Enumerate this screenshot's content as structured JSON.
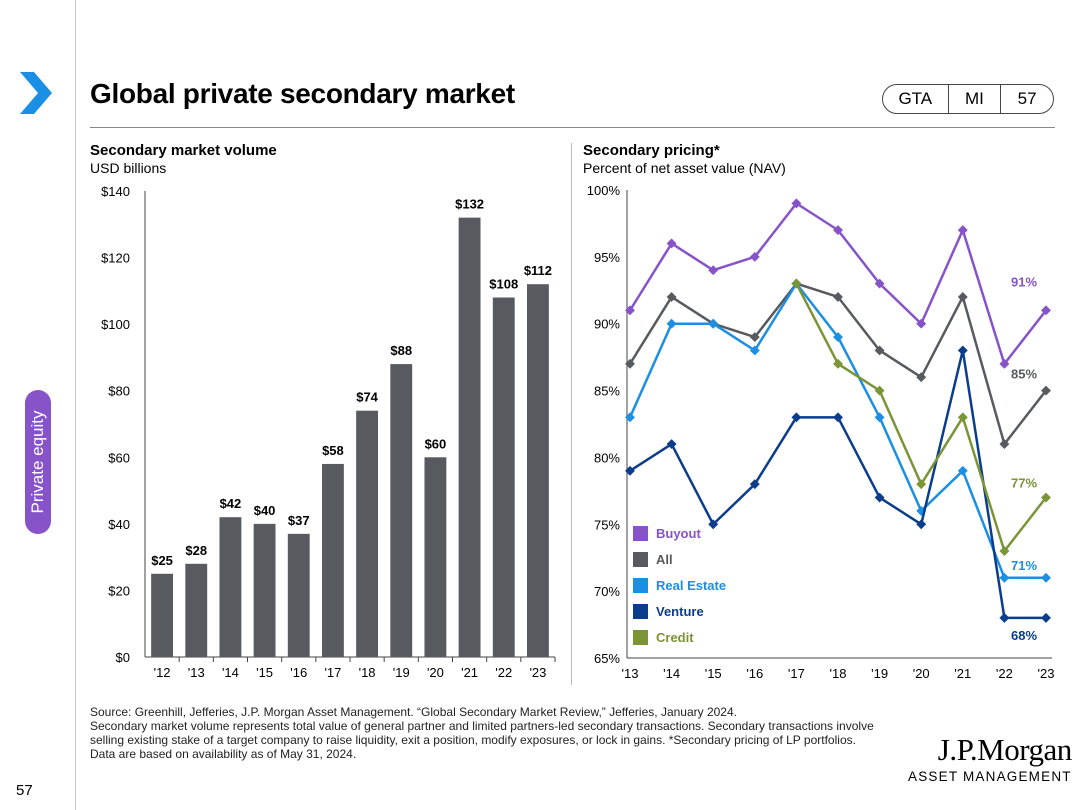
{
  "page": {
    "title": "Global private secondary market",
    "tags": [
      "GTA",
      "MI",
      "57"
    ],
    "section_tab": "Private equity",
    "page_number": "57",
    "footnotes": [
      "Source: Greenhill, Jefferies, J.P. Morgan Asset Management. “Global Secondary Market Review,” Jefferies, January 2024.",
      "Secondary market volume represents total value of general partner and limited partners-led secondary transactions. Secondary transactions involve selling existing stake of a target company to raise liquidity, exit a position, modify exposures, or lock in gains. *Secondary pricing of LP portfolios.",
      "Data are based on availability as of May 31, 2024."
    ],
    "logo": {
      "line1": "J.P.Morgan",
      "line2": "ASSET MANAGEMENT"
    },
    "colors": {
      "accent": "#8653c9",
      "brand_blue": "#1a8fe3",
      "bar": "#575a5e"
    }
  },
  "chart_data": [
    {
      "type": "bar",
      "title": "Secondary market volume",
      "subtitle": "USD billions",
      "categories": [
        "'12",
        "'13",
        "'14",
        "'15",
        "'16",
        "'17",
        "'18",
        "'19",
        "'20",
        "'21",
        "'22",
        "'23"
      ],
      "values": [
        25,
        28,
        42,
        40,
        37,
        58,
        74,
        88,
        60,
        132,
        108,
        112
      ],
      "data_labels": [
        "$25",
        "$28",
        "$42",
        "$40",
        "$37",
        "$58",
        "$74",
        "$88",
        "$60",
        "$132",
        "$108",
        "$112"
      ],
      "ylim": [
        0,
        140
      ],
      "yticks": [
        0,
        20,
        40,
        60,
        80,
        100,
        120,
        140
      ],
      "ytick_labels": [
        "$0",
        "$20",
        "$40",
        "$60",
        "$80",
        "$100",
        "$120",
        "$140"
      ],
      "color": "#575a5e"
    },
    {
      "type": "line",
      "title": "Secondary pricing*",
      "subtitle": "Percent of net asset value (NAV)",
      "categories": [
        "'13",
        "'14",
        "'15",
        "'16",
        "'17",
        "'18",
        "'19",
        "'20",
        "'21",
        "'22",
        "'23"
      ],
      "ylim": [
        65,
        100
      ],
      "yticks": [
        65,
        70,
        75,
        80,
        85,
        90,
        95,
        100
      ],
      "ytick_labels": [
        "65%",
        "70%",
        "75%",
        "80%",
        "85%",
        "90%",
        "95%",
        "100%"
      ],
      "series": [
        {
          "name": "Buyout",
          "color": "#8653c9",
          "values": [
            91,
            96,
            94,
            95,
            99,
            97,
            93,
            90,
            97,
            87,
            91
          ],
          "end_label": "91%"
        },
        {
          "name": "All",
          "color": "#575a5e",
          "values": [
            87,
            92,
            90,
            89,
            93,
            92,
            88,
            86,
            92,
            81,
            85
          ],
          "end_label": "85%"
        },
        {
          "name": "Real Estate",
          "color": "#1a8fe3",
          "values": [
            83,
            90,
            90,
            88,
            93,
            89,
            83,
            76,
            79,
            71,
            71
          ],
          "end_label": "71%"
        },
        {
          "name": "Venture",
          "color": "#0b3d8c",
          "values": [
            79,
            81,
            75,
            78,
            83,
            83,
            77,
            75,
            88,
            68,
            68
          ],
          "end_label": "68%"
        },
        {
          "name": "Credit",
          "color": "#7a9436",
          "values": [
            null,
            null,
            null,
            null,
            93,
            87,
            85,
            78,
            83,
            73,
            77
          ],
          "end_label": "77%"
        }
      ],
      "legend_position": "bottom-left"
    }
  ]
}
